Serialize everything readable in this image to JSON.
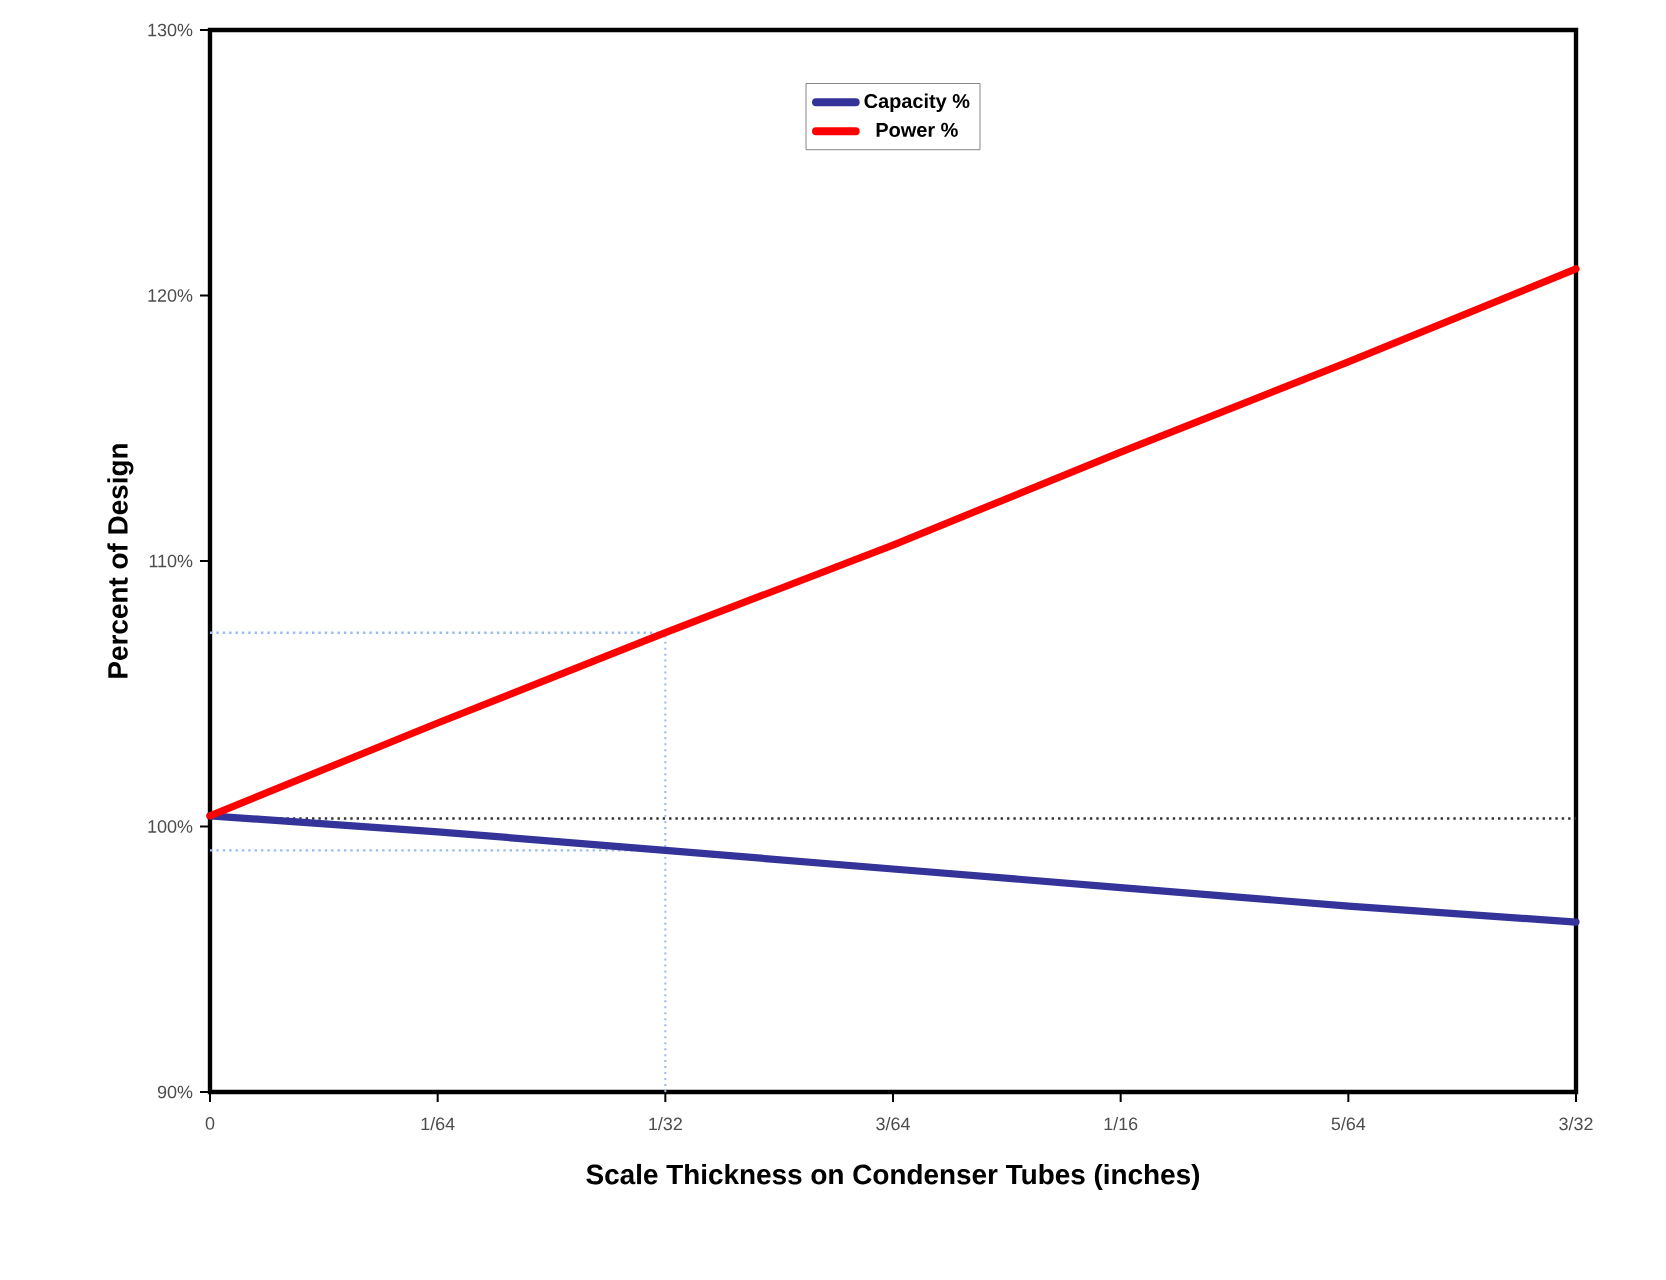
{
  "chart_data": {
    "type": "line",
    "xlabel": "Scale Thickness on Condenser Tubes (inches)",
    "ylabel": "Percent of Design",
    "x": [
      0,
      0.015625,
      0.03125,
      0.046875,
      0.0625,
      0.078125,
      0.09375
    ],
    "series": [
      {
        "name": "Capacity %",
        "color": "#333399",
        "values": [
          100.4,
          99.8,
          99.1,
          98.4,
          97.7,
          97.0,
          96.4
        ]
      },
      {
        "name": "Power %",
        "color": "#ff0000",
        "values": [
          100.4,
          103.9,
          107.3,
          110.6,
          114.1,
          117.5,
          121.0
        ]
      }
    ],
    "xlim": [
      0,
      0.09375
    ],
    "xticks": [
      0,
      {
        "value": 0.015625,
        "label": "1/64"
      },
      {
        "value": 0.03125,
        "label": "1/32"
      },
      {
        "value": 0.046875,
        "label": "3/64"
      },
      {
        "value": 0.0625,
        "label": "1/16"
      },
      {
        "value": 0.078125,
        "label": "5/64"
      },
      {
        "value": 0.09375,
        "label": "3/32"
      }
    ],
    "ylim": [
      90,
      130
    ],
    "yticks": [
      {
        "value": 90,
        "label": "90%"
      },
      {
        "value": 100,
        "label": "100%"
      },
      {
        "value": 110,
        "label": "110%"
      },
      {
        "value": 120,
        "label": "120%"
      },
      {
        "value": 130,
        "label": "130%"
      }
    ],
    "ref_lines": [
      {
        "axis": "y",
        "value": 100.3,
        "color": "#333333",
        "line_style": "dotted"
      },
      {
        "axis": "y",
        "value": 107.3,
        "color": "#99bbee",
        "line_style": "dotted"
      },
      {
        "axis": "y",
        "value": 99.1,
        "color": "#99bbee",
        "line_style": "dotted"
      },
      {
        "axis": "x",
        "value": 0.03125,
        "color": "#99bbee",
        "line_style": "dotted"
      }
    ],
    "legend": "top",
    "line_style": "solid",
    "grid": false
  }
}
